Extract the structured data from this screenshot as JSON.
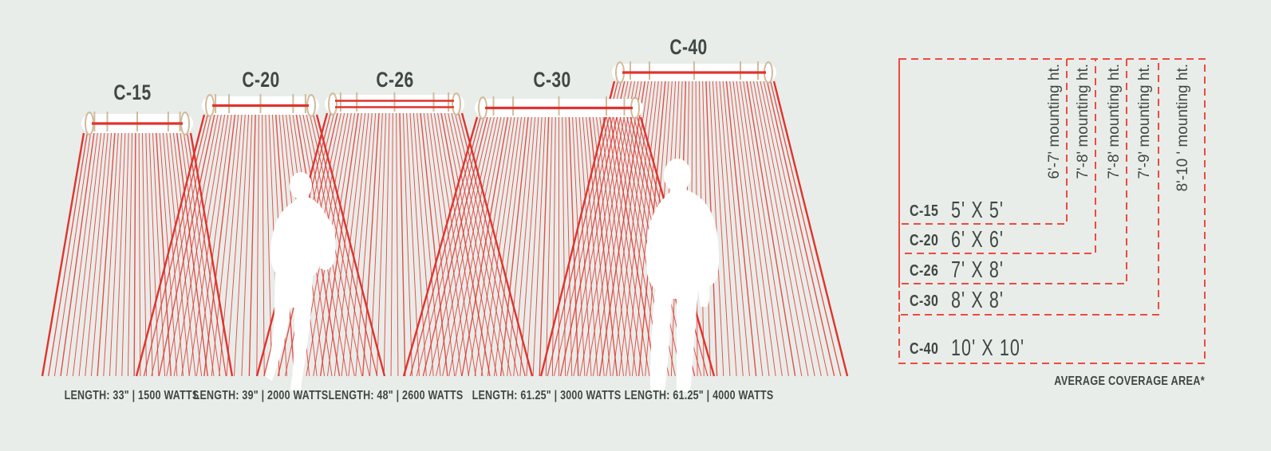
{
  "background": "#e9ede9",
  "palette": {
    "beam_red": "#e1332e",
    "dash_red": "#ee4a41",
    "text_dark": "#3f4843",
    "bracket_tan": "#cfbc9b",
    "heater_white": "#ffffff",
    "silhouette_white": "#ffffff"
  },
  "heaters": [
    {
      "model": "C-15",
      "spec": "LENGTH: 33\" | 1500 WATTS"
    },
    {
      "model": "C-20",
      "spec": "LENGTH: 39\" | 2000 WATTS"
    },
    {
      "model": "C-26",
      "spec": "LENGTH: 48\" | 2600 WATTS"
    },
    {
      "model": "C-30",
      "spec": "LENGTH: 61.25\" | 3000 WATTS"
    },
    {
      "model": "C-40",
      "spec": "LENGTH: 61.25\" | 4000 WATTS"
    }
  ],
  "coverage": {
    "rows": [
      {
        "model": "C-15",
        "area": "5' X 5'",
        "mounting": "6'-7' mounting ht."
      },
      {
        "model": "C-20",
        "area": "6' X 6'",
        "mounting": "7'-8' mounting ht."
      },
      {
        "model": "C-26",
        "area": "7' X 8'",
        "mounting": "7'-8' mounting ht."
      },
      {
        "model": "C-30",
        "area": "8' X 8'",
        "mounting": "7'-9' mounting ht."
      },
      {
        "model": "C-40",
        "area": "10' X 10'",
        "mounting": "8'-10 ' mounting ht."
      }
    ],
    "footnote": "AVERAGE COVERAGE AREA*"
  }
}
